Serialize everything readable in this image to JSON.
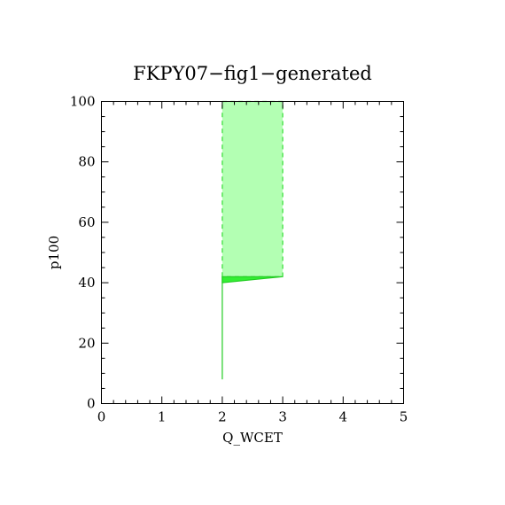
{
  "chart_data": {
    "type": "area",
    "title": "FKPY07−fig1−generated",
    "xlabel": "Q_WCET",
    "ylabel": "p100",
    "xlim": [
      0,
      5
    ],
    "ylim": [
      0,
      100
    ],
    "x_ticks": [
      "0",
      "1",
      "2",
      "3",
      "4",
      "5"
    ],
    "y_ticks": [
      "0",
      "20",
      "40",
      "60",
      "80",
      "100"
    ],
    "grid": false,
    "legend": "none",
    "regions": [
      {
        "name": "",
        "fill": "#b3ffb3",
        "stroke": "#33dd33",
        "dashed": true,
        "points": [
          [
            2,
            42
          ],
          [
            2,
            100
          ],
          [
            3,
            100
          ],
          [
            3,
            42
          ]
        ]
      },
      {
        "name": "",
        "fill": "#33ee33",
        "stroke": "#22cc22",
        "dashed": false,
        "points": [
          [
            2,
            40
          ],
          [
            2,
            42
          ],
          [
            3,
            42
          ]
        ]
      }
    ],
    "lines": [
      {
        "name": "",
        "color": "#22cc22",
        "points": [
          [
            2,
            8
          ],
          [
            2,
            42
          ]
        ]
      }
    ]
  }
}
